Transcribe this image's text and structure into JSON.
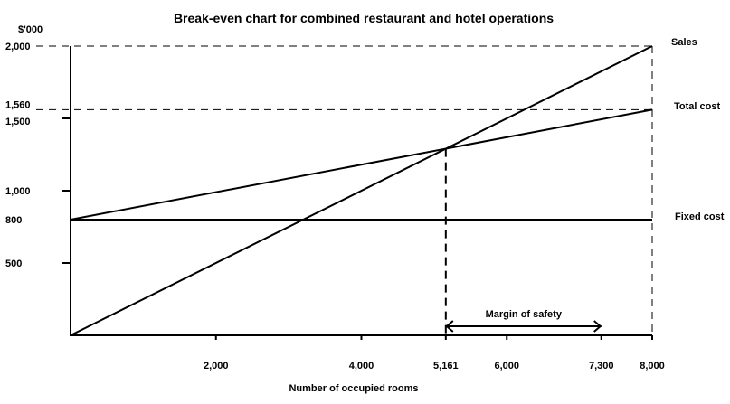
{
  "chart_data": {
    "type": "line",
    "title": "Break-even chart for combined restaurant and hotel operations",
    "xlabel": "Number of occupied rooms",
    "ylabel": "$'000",
    "xlim": [
      0,
      8000
    ],
    "ylim": [
      0,
      2000
    ],
    "grid": false,
    "x_ticks": [
      {
        "value": 2000,
        "label": "2,000"
      },
      {
        "value": 4000,
        "label": "4,000"
      },
      {
        "value": 5161,
        "label": "5,161"
      },
      {
        "value": 6000,
        "label": "6,000"
      },
      {
        "value": 7300,
        "label": "7,300"
      },
      {
        "value": 8000,
        "label": "8,000"
      }
    ],
    "y_ticks": [
      {
        "value": 500,
        "label": "500"
      },
      {
        "value": 800,
        "label": "800"
      },
      {
        "value": 1000,
        "label": "1,000"
      },
      {
        "value": 1500,
        "label": "1,500"
      },
      {
        "value": 1560,
        "label": "1,560"
      },
      {
        "value": 2000,
        "label": "2,000"
      }
    ],
    "series": [
      {
        "name": "Sales",
        "x": [
          0,
          8000
        ],
        "y": [
          0,
          2000
        ]
      },
      {
        "name": "Total cost",
        "x": [
          0,
          8000
        ],
        "y": [
          800,
          1560
        ]
      },
      {
        "name": "Fixed cost",
        "x": [
          0,
          8000
        ],
        "y": [
          800,
          800
        ]
      }
    ],
    "break_even": {
      "x": 5161,
      "y": 1290
    },
    "annotations": [
      {
        "text": "Margin of safety",
        "from_x": 5161,
        "to_x": 7300
      }
    ],
    "reference_lines": [
      {
        "axis": "y",
        "value": 2000,
        "style": "dashed"
      },
      {
        "axis": "y",
        "value": 1560,
        "style": "dashed"
      },
      {
        "axis": "x",
        "value": 8000,
        "style": "dashed"
      },
      {
        "axis": "x",
        "value": 5161,
        "style": "dashed"
      }
    ]
  }
}
